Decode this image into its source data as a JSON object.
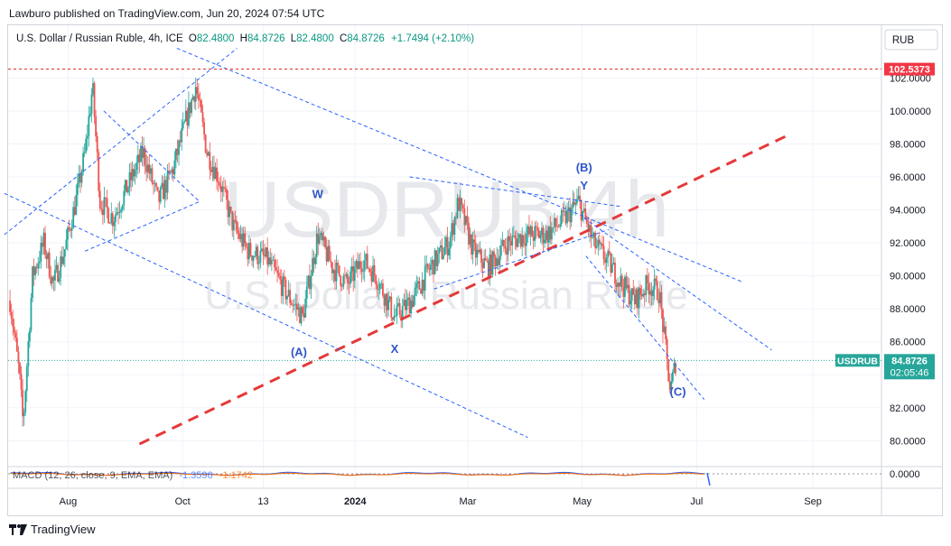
{
  "header": {
    "published": "Lawburo published on TradingView.com, Jun 20, 2024 07:54 UTC"
  },
  "legend": {
    "symbol": "U.S. Dollar / Russian Ruble, 4h, ICE",
    "open_label": "O",
    "open": "82.4800",
    "high_label": "H",
    "high": "84.8726",
    "low_label": "L",
    "low": "82.4800",
    "close_label": "C",
    "close": "84.8726",
    "change": "+1.7494 (+2.10%)"
  },
  "watermark": {
    "ticker": "USDRUB 4h",
    "name": "U.S. Dollar / Russian Ruble"
  },
  "currency": "RUB",
  "price_label": {
    "symbol": "USDRUB",
    "value": "84.8726",
    "countdown": "02:05:46"
  },
  "level_label": "102.5373",
  "macd_label": {
    "name": "MACD (12, 26, close, 9, EMA, EMA)",
    "v1": "-1.3596",
    "v2": "-1.1742"
  },
  "macd_axis": "0.0000",
  "wave_labels": [
    "W",
    "(A)",
    "X",
    "(B)",
    "Y",
    "(C)"
  ],
  "footer": {
    "brand": "TradingView"
  },
  "colors": {
    "up": "#26a69a",
    "down": "#ef5350",
    "trend": "#2962ff",
    "red_dash": "#e53939",
    "label_blue": "#2f55c7"
  },
  "chart_data": {
    "type": "candlestick",
    "title": "U.S. Dollar / Russian Ruble, 4h, ICE",
    "x_ticks": [
      "Aug",
      "Oct",
      "13",
      "2024",
      "Mar",
      "May",
      "Jul",
      "Sep"
    ],
    "y_ticks": [
      "102.0000",
      "100.0000",
      "98.0000",
      "96.0000",
      "94.0000",
      "92.0000",
      "90.0000",
      "88.0000",
      "86.0000",
      "84.0000",
      "82.0000",
      "80.0000"
    ],
    "y_range": [
      79,
      104
    ],
    "last_price": 84.8726,
    "horizontal_level": 102.5373,
    "path": [
      [
        "2023-07-01",
        88.5
      ],
      [
        "2023-07-06",
        84
      ],
      [
        "2023-07-08",
        81
      ],
      [
        "2023-07-13",
        90
      ],
      [
        "2023-07-19",
        92
      ],
      [
        "2023-07-24",
        89.5
      ],
      [
        "2023-07-30",
        91.5
      ],
      [
        "2023-08-05",
        94.5
      ],
      [
        "2023-08-10",
        97.5
      ],
      [
        "2023-08-14",
        101.5
      ],
      [
        "2023-08-18",
        94.5
      ],
      [
        "2023-08-25",
        93.5
      ],
      [
        "2023-09-02",
        95.5
      ],
      [
        "2023-09-10",
        97.5
      ],
      [
        "2023-09-18",
        94.5
      ],
      [
        "2023-09-26",
        96.5
      ],
      [
        "2023-10-03",
        99.5
      ],
      [
        "2023-10-08",
        101.5
      ],
      [
        "2023-10-14",
        97.5
      ],
      [
        "2023-10-20",
        96
      ],
      [
        "2023-10-28",
        93
      ],
      [
        "2023-11-05",
        91.5
      ],
      [
        "2023-11-15",
        91
      ],
      [
        "2023-11-25",
        89
      ],
      [
        "2023-12-04",
        87.5
      ],
      [
        "2023-12-12",
        92.5
      ],
      [
        "2023-12-20",
        90.5
      ],
      [
        "2023-12-28",
        89.5
      ],
      [
        "2024-01-05",
        91
      ],
      [
        "2024-01-12",
        90
      ],
      [
        "2024-01-22",
        87.5
      ],
      [
        "2024-01-31",
        88.5
      ],
      [
        "2024-02-10",
        90.5
      ],
      [
        "2024-02-20",
        92
      ],
      [
        "2024-02-25",
        94.5
      ],
      [
        "2024-03-04",
        91.5
      ],
      [
        "2024-03-12",
        90.5
      ],
      [
        "2024-03-22",
        92
      ],
      [
        "2024-04-02",
        92.5
      ],
      [
        "2024-04-12",
        92.5
      ],
      [
        "2024-04-22",
        93.5
      ],
      [
        "2024-04-29",
        94.5
      ],
      [
        "2024-05-07",
        92
      ],
      [
        "2024-05-14",
        91
      ],
      [
        "2024-05-22",
        89.5
      ],
      [
        "2024-05-29",
        88.5
      ],
      [
        "2024-06-05",
        89.5
      ],
      [
        "2024-06-11",
        89
      ],
      [
        "2024-06-14",
        86
      ],
      [
        "2024-06-17",
        83
      ],
      [
        "2024-06-20",
        84.9
      ]
    ],
    "wave_points": [
      {
        "label": "W",
        "date": "2023-12-12",
        "price": 95
      },
      {
        "label": "(A)",
        "date": "2023-12-02",
        "price": 85.4
      },
      {
        "label": "X",
        "date": "2024-01-22",
        "price": 85.6
      },
      {
        "label": "(B)",
        "date": "2024-05-02",
        "price": 96.6
      },
      {
        "label": "Y",
        "date": "2024-05-02",
        "price": 95.5
      },
      {
        "label": "(C)",
        "date": "2024-06-21",
        "price": 83
      }
    ],
    "trendlines": [
      {
        "style": "red-dash",
        "from": [
          "2023-09-08",
          79.8
        ],
        "to": [
          "2024-08-20",
          98.6
        ]
      },
      {
        "style": "blue-dash",
        "from": [
          "2023-06-28",
          92.5
        ],
        "to": [
          "2023-10-30",
          103.8
        ]
      },
      {
        "style": "blue-dash",
        "from": [
          "2023-08-20",
          100
        ],
        "to": [
          "2023-10-10",
          94.5
        ]
      },
      {
        "style": "blue-dash",
        "from": [
          "2023-08-10",
          91.5
        ],
        "to": [
          "2023-10-10",
          94.5
        ]
      },
      {
        "style": "blue-dash",
        "from": [
          "2023-06-28",
          95
        ],
        "to": [
          "2024-04-02",
          80.2
        ]
      },
      {
        "style": "blue-dash",
        "from": [
          "2023-09-28",
          103.8
        ],
        "to": [
          "2024-07-26",
          89.6
        ]
      },
      {
        "style": "blue-dash",
        "from": [
          "2024-01-30",
          96
        ],
        "to": [
          "2024-05-22",
          94.2
        ]
      },
      {
        "style": "blue-dash",
        "from": [
          "2024-02-12",
          89.2
        ],
        "to": [
          "2024-05-15",
          92.8
        ]
      },
      {
        "style": "blue-dash",
        "from": [
          "2024-05-02",
          93.5
        ],
        "to": [
          "2024-08-10",
          85.5
        ]
      },
      {
        "style": "blue-dash",
        "from": [
          "2024-05-03",
          91.2
        ],
        "to": [
          "2024-07-05",
          82.5
        ]
      }
    ]
  }
}
